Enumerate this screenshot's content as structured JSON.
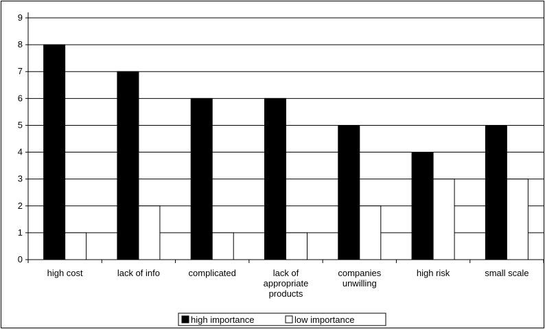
{
  "chart_data": {
    "type": "bar",
    "categories": [
      [
        "high cost"
      ],
      [
        "lack of info"
      ],
      [
        "complicated"
      ],
      [
        "lack of",
        "appropriate",
        "products"
      ],
      [
        "companies",
        "unwilling"
      ],
      [
        "high risk"
      ],
      [
        "small scale"
      ]
    ],
    "series": [
      {
        "name": "high importance",
        "values": [
          8,
          7,
          6,
          6,
          5,
          4,
          5
        ],
        "color": "#000000"
      },
      {
        "name": "low importance",
        "values": [
          1,
          2,
          1,
          1,
          2,
          3,
          3
        ],
        "color": "#ffffff"
      }
    ],
    "ylim": [
      0,
      9
    ],
    "yticks": [
      0,
      1,
      2,
      3,
      4,
      5,
      6,
      7,
      8,
      9
    ],
    "grid": true,
    "legend_position": "bottom-center"
  }
}
